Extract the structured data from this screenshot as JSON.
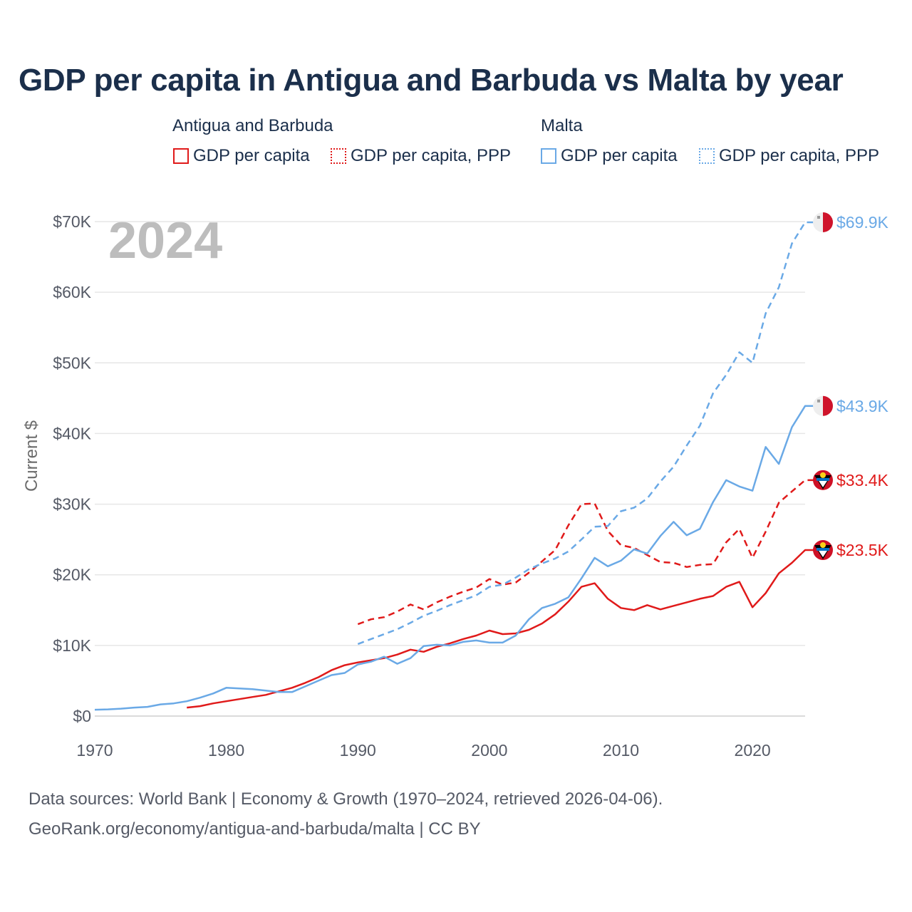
{
  "title": "GDP per capita in Antigua and Barbuda vs Malta by year",
  "legend": {
    "group1": "Antigua and Barbuda",
    "group2": "Malta",
    "item1": "GDP per capita",
    "item2": "GDP per capita, PPP",
    "item3": "GDP per capita",
    "item4": "GDP per capita, PPP"
  },
  "year_watermark": "2024",
  "footer": {
    "line1": "Data sources: World Bank | Economy & Growth (1970–2024, retrieved 2026-04-06).",
    "line2": "GeoRank.org/economy/antigua-and-barbuda/malta | CC BY"
  },
  "colors": {
    "antigua": "#e01a1a",
    "malta": "#6aa9e6",
    "title": "#1b2f4b",
    "grid": "#e6e6e6",
    "watermark": "#bdbdbd"
  },
  "chart_data": {
    "type": "line",
    "ylabel": "Current $",
    "xlabel": "",
    "xlim": [
      1970,
      2024
    ],
    "ylim": [
      0,
      70000
    ],
    "x_ticks": [
      1970,
      1980,
      1990,
      2000,
      2010,
      2020
    ],
    "y_ticks": [
      0,
      10000,
      20000,
      30000,
      40000,
      50000,
      60000,
      70000
    ],
    "y_tick_labels": [
      "$0",
      "$10K",
      "$20K",
      "$30K",
      "$40K",
      "$50K",
      "$60K",
      "$70K"
    ],
    "series": [
      {
        "name": "Antigua and Barbuda — GDP per capita",
        "country": "Antigua and Barbuda",
        "color": "#e01a1a",
        "dash": false,
        "end_label": "$23.5K",
        "x": [
          1977,
          1978,
          1979,
          1980,
          1981,
          1982,
          1983,
          1984,
          1985,
          1986,
          1987,
          1988,
          1989,
          1990,
          1991,
          1992,
          1993,
          1994,
          1995,
          1996,
          1997,
          1998,
          1999,
          2000,
          2001,
          2002,
          2003,
          2004,
          2005,
          2006,
          2007,
          2008,
          2009,
          2010,
          2011,
          2012,
          2013,
          2014,
          2015,
          2016,
          2017,
          2018,
          2019,
          2020,
          2021,
          2022,
          2023,
          2024
        ],
        "y": [
          1200,
          1400,
          1800,
          2100,
          2400,
          2700,
          3000,
          3500,
          4000,
          4700,
          5500,
          6500,
          7200,
          7600,
          7900,
          8200,
          8700,
          9400,
          9100,
          9800,
          10300,
          10900,
          11400,
          12100,
          11600,
          11700,
          12200,
          13100,
          14400,
          16200,
          18300,
          18800,
          16600,
          15300,
          15000,
          15700,
          15100,
          15600,
          16100,
          16600,
          17000,
          18300,
          19000,
          15400,
          17400,
          20200,
          21700,
          23500
        ]
      },
      {
        "name": "Antigua and Barbuda — GDP per capita, PPP",
        "country": "Antigua and Barbuda",
        "color": "#e01a1a",
        "dash": true,
        "end_label": "$33.4K",
        "x": [
          1990,
          1991,
          1992,
          1993,
          1994,
          1995,
          1996,
          1997,
          1998,
          1999,
          2000,
          2001,
          2002,
          2003,
          2004,
          2005,
          2006,
          2007,
          2008,
          2009,
          2010,
          2011,
          2012,
          2013,
          2014,
          2015,
          2016,
          2017,
          2018,
          2019,
          2020,
          2021,
          2022,
          2023,
          2024
        ],
        "y": [
          13000,
          13700,
          14000,
          14800,
          15800,
          15100,
          16100,
          16900,
          17600,
          18200,
          19400,
          18600,
          18900,
          20300,
          21900,
          23500,
          27000,
          30000,
          30100,
          26200,
          24200,
          23800,
          22800,
          21800,
          21700,
          21100,
          21400,
          21500,
          24600,
          26500,
          22400,
          26100,
          30200,
          31800,
          33400
        ]
      },
      {
        "name": "Malta — GDP per capita",
        "country": "Malta",
        "color": "#6aa9e6",
        "dash": false,
        "end_label": "$43.9K",
        "x": [
          1970,
          1971,
          1972,
          1973,
          1974,
          1975,
          1976,
          1977,
          1978,
          1979,
          1980,
          1981,
          1982,
          1983,
          1984,
          1985,
          1986,
          1987,
          1988,
          1989,
          1990,
          1991,
          1992,
          1993,
          1994,
          1995,
          1996,
          1997,
          1998,
          1999,
          2000,
          2001,
          2002,
          2003,
          2004,
          2005,
          2006,
          2007,
          2008,
          2009,
          2010,
          2011,
          2012,
          2013,
          2014,
          2015,
          2016,
          2017,
          2018,
          2019,
          2020,
          2021,
          2022,
          2023,
          2024
        ],
        "y": [
          900,
          950,
          1050,
          1200,
          1300,
          1650,
          1800,
          2100,
          2600,
          3200,
          4000,
          3900,
          3800,
          3600,
          3400,
          3400,
          4200,
          5000,
          5800,
          6100,
          7300,
          7700,
          8400,
          7400,
          8200,
          9900,
          10100,
          10000,
          10500,
          10700,
          10400,
          10400,
          11400,
          13700,
          15300,
          15900,
          16800,
          19500,
          22400,
          21200,
          22000,
          23600,
          23000,
          25500,
          27500,
          25600,
          26500,
          30300,
          33400,
          32500,
          31900,
          38100,
          35700,
          40900,
          43900
        ]
      },
      {
        "name": "Malta — GDP per capita, PPP",
        "country": "Malta",
        "color": "#6aa9e6",
        "dash": true,
        "end_label": "$69.9K",
        "x": [
          1990,
          1991,
          1992,
          1993,
          1994,
          1995,
          1996,
          1997,
          1998,
          1999,
          2000,
          2001,
          2002,
          2003,
          2004,
          2005,
          2006,
          2007,
          2008,
          2009,
          2010,
          2011,
          2012,
          2013,
          2014,
          2015,
          2016,
          2017,
          2018,
          2019,
          2020,
          2021,
          2022,
          2023,
          2024
        ],
        "y": [
          10200,
          10900,
          11600,
          12300,
          13200,
          14200,
          14900,
          15700,
          16400,
          17100,
          18300,
          18600,
          19600,
          20800,
          21600,
          22300,
          23300,
          25000,
          26800,
          26900,
          29000,
          29500,
          30800,
          33200,
          35300,
          38300,
          41100,
          45700,
          48300,
          51500,
          50000,
          57000,
          60700,
          66900,
          69900
        ]
      }
    ]
  }
}
